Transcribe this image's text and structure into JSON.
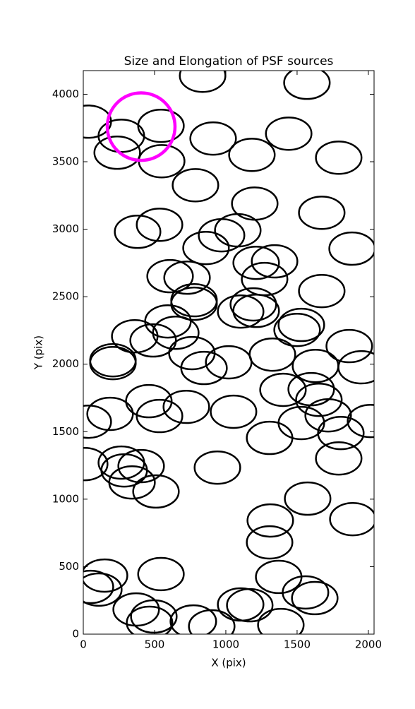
{
  "chart_data": {
    "type": "ellipse",
    "title": "Size and Elongation of PSF sources",
    "xlabel": "X (pix)",
    "ylabel": "Y (pix)",
    "xlim": [
      0,
      2040
    ],
    "ylim": [
      0,
      4175
    ],
    "xticks": [
      0,
      500,
      1000,
      1500,
      2000
    ],
    "yticks": [
      0,
      500,
      1000,
      1500,
      2000,
      2500,
      3000,
      3500,
      4000
    ],
    "color": "#000000",
    "x": [
      837,
      1569,
      35,
      267,
      545,
      238,
      550,
      911,
      1441,
      1183,
      1792,
      787,
      1203,
      1673,
      381,
      535,
      1084,
      970,
      861,
      1886,
      1213,
      1342,
      1272,
      609,
      728,
      1673,
      777,
      777,
      1104,
      1193,
      1213,
      1530,
      1500,
      594,
      649,
      361,
      490,
      1866,
      208,
      208,
      762,
      1327,
      1020,
      847,
      1629,
      1950,
      1401,
      1599,
      1653,
      460,
      188,
      723,
      535,
      1054,
      1718,
      35,
      1530,
      1807,
      2015,
      1307,
      1792,
      10,
      267,
      287,
      406,
      342,
      510,
      941,
      1574,
      1312,
      1891,
      1307,
      149,
      50,
      109,
      545,
      1371,
      1559,
      1624,
      371,
      495,
      465,
      772,
      901,
      1104,
      1168,
      1386
    ],
    "y": [
      4137,
      4085,
      3797,
      3692,
      3766,
      3567,
      3504,
      3672,
      3708,
      3551,
      3530,
      3326,
      3190,
      3122,
      2981,
      3033,
      2992,
      2955,
      2861,
      2856,
      2751,
      2762,
      2631,
      2652,
      2641,
      2542,
      2474,
      2448,
      2390,
      2443,
      2395,
      2291,
      2254,
      2317,
      2233,
      2207,
      2176,
      2134,
      2029,
      2008,
      2082,
      2071,
      2014,
      1972,
      1987,
      1977,
      1810,
      1815,
      1736,
      1726,
      1632,
      1684,
      1616,
      1648,
      1621,
      1574,
      1564,
      1490,
      1579,
      1454,
      1302,
      1260,
      1271,
      1213,
      1245,
      1124,
      1057,
      1234,
      1004,
      842,
      852,
      680,
      434,
      350,
      330,
      445,
      424,
      309,
      267,
      183,
      131,
      84,
      94,
      58,
      220,
      214,
      68
    ],
    "widths": [
      320,
      320,
      320,
      320,
      320,
      320,
      320,
      320,
      320,
      320,
      320,
      320,
      320,
      320,
      320,
      320,
      320,
      320,
      320,
      320,
      320,
      320,
      320,
      320,
      320,
      320,
      320,
      320,
      320,
      320,
      320,
      320,
      320,
      320,
      320,
      320,
      320,
      320,
      320,
      320,
      320,
      320,
      320,
      320,
      320,
      320,
      320,
      320,
      320,
      320,
      320,
      320,
      320,
      320,
      320,
      320,
      320,
      320,
      320,
      320,
      320,
      320,
      320,
      320,
      320,
      320,
      320,
      320,
      320,
      320,
      320,
      320,
      320,
      320,
      320,
      320,
      320,
      320,
      320,
      320,
      320,
      320,
      320,
      320,
      320,
      320,
      320
    ],
    "heights": [
      240,
      240,
      240,
      240,
      240,
      240,
      240,
      240,
      240,
      240,
      240,
      240,
      240,
      240,
      240,
      240,
      240,
      240,
      240,
      240,
      240,
      240,
      240,
      240,
      240,
      240,
      240,
      240,
      240,
      240,
      240,
      240,
      240,
      240,
      240,
      240,
      240,
      240,
      240,
      240,
      240,
      240,
      240,
      240,
      240,
      240,
      240,
      240,
      240,
      240,
      240,
      240,
      240,
      240,
      240,
      240,
      240,
      240,
      240,
      240,
      240,
      240,
      240,
      240,
      240,
      240,
      240,
      240,
      240,
      240,
      240,
      240,
      240,
      240,
      240,
      240,
      240,
      240,
      240,
      240,
      240,
      240,
      240,
      240,
      240,
      240,
      240
    ],
    "highlight": {
      "x": 406,
      "y": 3760,
      "width": 475,
      "height": 500,
      "color": "#ff00ff"
    }
  }
}
